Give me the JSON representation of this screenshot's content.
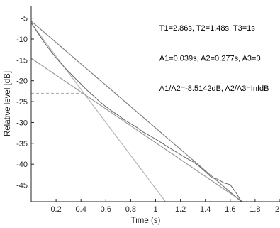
{
  "chart_data": {
    "type": "line",
    "title": "",
    "xlabel": "Time (s)",
    "ylabel": "Relative level [dB]",
    "xlim": [
      0,
      2.0
    ],
    "ylim": [
      -49,
      -2
    ],
    "x_ticks": [
      {
        "value": 0.2,
        "label": "0.2"
      },
      {
        "value": 0.4,
        "label": "0.4"
      },
      {
        "value": 0.6,
        "label": "0.6"
      },
      {
        "value": 0.8,
        "label": "0.8"
      },
      {
        "value": 1.0,
        "label": "1"
      },
      {
        "value": 1.2,
        "label": "1.2"
      },
      {
        "value": 1.4,
        "label": "1.4"
      },
      {
        "value": 1.6,
        "label": "1.6"
      },
      {
        "value": 1.8,
        "label": "1.8"
      },
      {
        "value": 2.0,
        "label": "2"
      }
    ],
    "y_ticks": [
      {
        "value": -5,
        "label": "-5"
      },
      {
        "value": -10,
        "label": "-10"
      },
      {
        "value": -15,
        "label": "-15"
      },
      {
        "value": -20,
        "label": "-20"
      },
      {
        "value": -25,
        "label": "-25"
      },
      {
        "value": -30,
        "label": "-30"
      },
      {
        "value": -35,
        "label": "-35"
      },
      {
        "value": -40,
        "label": "-40"
      },
      {
        "value": -45,
        "label": "-45"
      }
    ],
    "grid": false,
    "series": [
      {
        "color": "#666666",
        "x": [
          0.0,
          0.05,
          0.1,
          0.15,
          0.2,
          0.25,
          0.3,
          0.35,
          0.4,
          0.45,
          0.5,
          0.55,
          0.6,
          0.65,
          0.7,
          0.75,
          0.8,
          0.85,
          0.9,
          0.95,
          1.0,
          1.05,
          1.1,
          1.15,
          1.2,
          1.25,
          1.3,
          1.35,
          1.4,
          1.45,
          1.5,
          1.55,
          1.6,
          1.65,
          1.69
        ],
        "y": [
          -6.0,
          -8.4,
          -10.6,
          -12.6,
          -14.5,
          -16.2,
          -17.8,
          -19.3,
          -20.8,
          -22.3,
          -23.6,
          -25.0,
          -26.2,
          -27.3,
          -28.3,
          -29.4,
          -30.3,
          -31.2,
          -32.3,
          -33.1,
          -34.0,
          -34.9,
          -35.9,
          -36.8,
          -37.7,
          -38.6,
          -39.4,
          -40.5,
          -41.8,
          -43.2,
          -43.6,
          -44.5,
          -44.9,
          -47.0,
          -49.0
        ]
      },
      {
        "color": "#7f7f7f",
        "x": [
          0.0,
          1.69
        ],
        "y": [
          -5.7,
          -49.0
        ]
      },
      {
        "color": "#9a9a9a",
        "x": [
          0.0,
          1.7
        ],
        "y": [
          -14.6,
          -49.0
        ]
      },
      {
        "color": "#b5b5b5",
        "x": [
          0.0,
          1.08
        ],
        "y": [
          -6.2,
          -49.0
        ]
      }
    ],
    "reference_line": {
      "style": "dashed",
      "color": "#aaaaaa",
      "y": -23.0,
      "x": [
        0.0,
        0.43
      ]
    },
    "annotations": [
      {
        "text": "T1=2.86s, T2=1.48s, T3=1s",
        "x": 1.03,
        "y": -8.0
      },
      {
        "text": "A1=0.039s, A2=0.277s, A3=0",
        "x": 1.03,
        "y": -15.2
      },
      {
        "text": "A1/A2=-8.5142dB, A2/A3=InfdB",
        "x": 1.03,
        "y": -22.4
      }
    ]
  }
}
